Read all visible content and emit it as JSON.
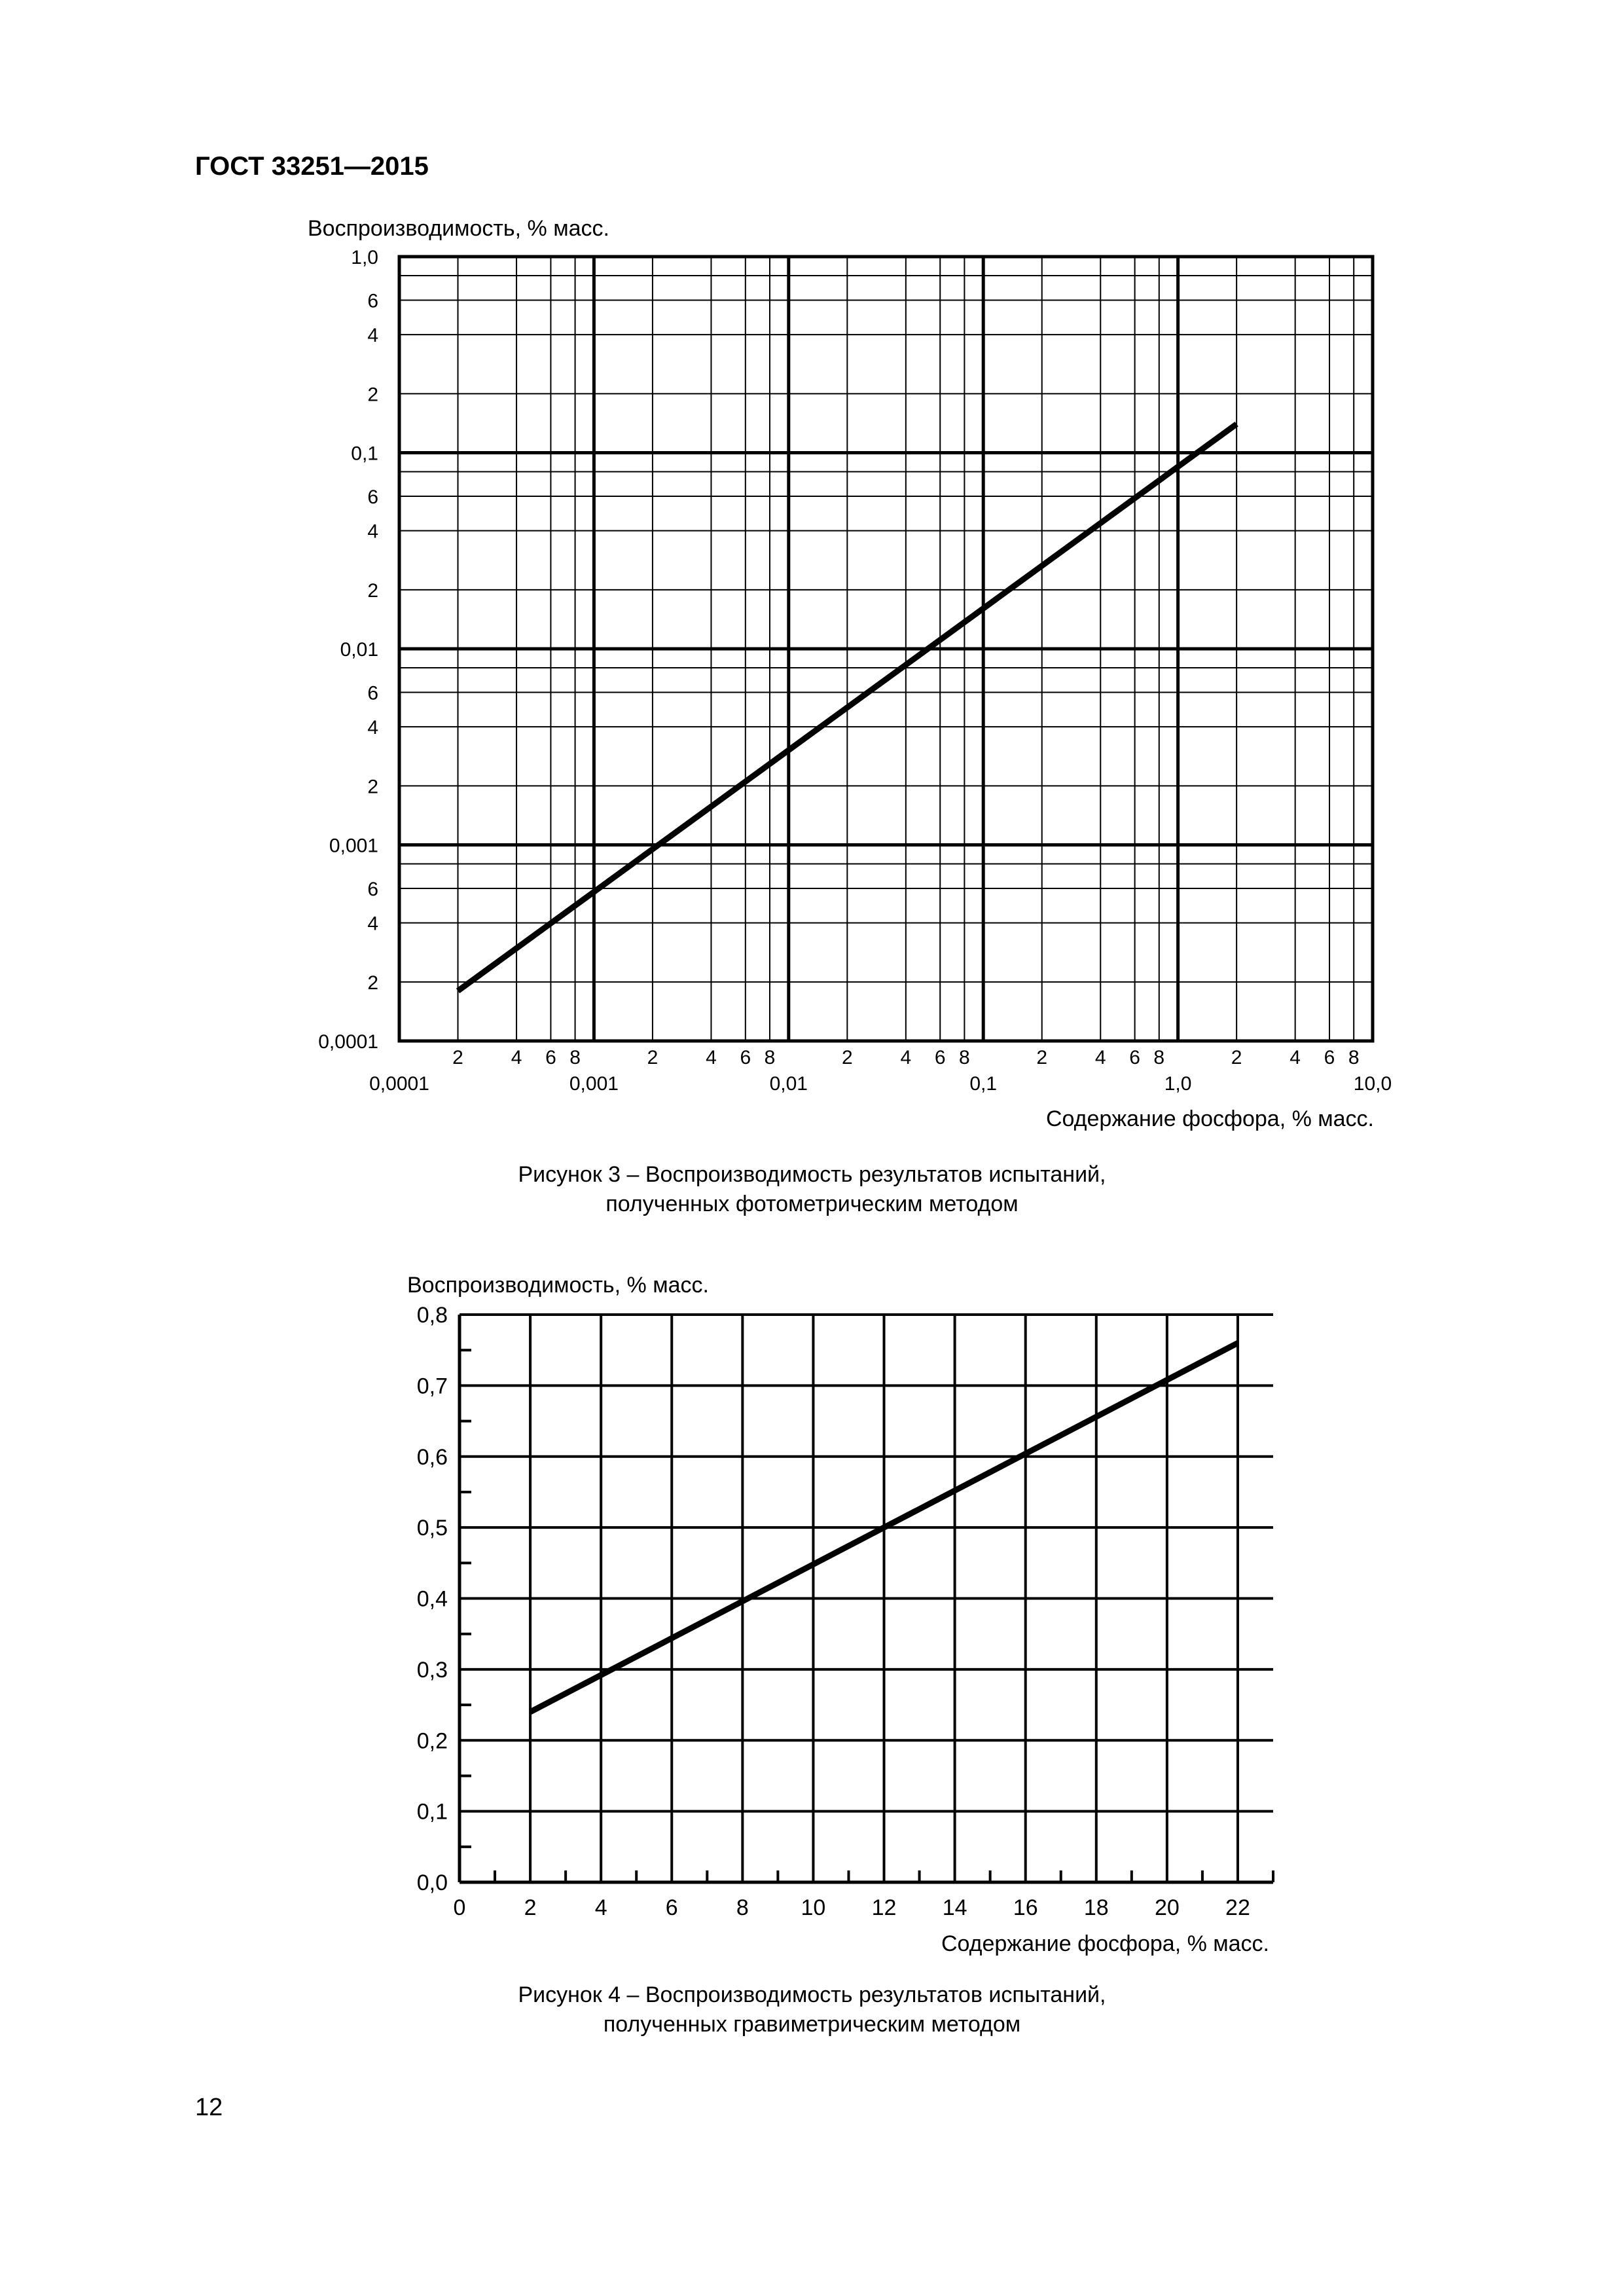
{
  "header": {
    "code": "ГОСТ 33251—2015"
  },
  "page_number": "12",
  "figures": [
    {
      "caption_line1": "Рисунок 3 – Воспроизводимость результатов испытаний,",
      "caption_line2": "полученных фотометрическим методом"
    },
    {
      "caption_line1": "Рисунок 4 – Воспроизводимость результатов испытаний,",
      "caption_line2": "полученных гравиметрическим методом"
    }
  ],
  "chart_data": [
    {
      "type": "line",
      "xscale": "log",
      "yscale": "log",
      "ylabel": "Воспроизводимость, % масс.",
      "xlabel": "Содержание фосфора, % масс.",
      "xlim": [
        0.0001,
        10.0
      ],
      "ylim": [
        0.0001,
        1.0
      ],
      "grid": true,
      "x_tick_labels": [
        {
          "v": 0.0001,
          "t": "0,0001"
        },
        {
          "v": 0.001,
          "t": "0,001"
        },
        {
          "v": 0.01,
          "t": "0,01"
        },
        {
          "v": 0.1,
          "t": "0,1"
        },
        {
          "v": 1.0,
          "t": "1,0"
        },
        {
          "v": 10.0,
          "t": "10,0"
        }
      ],
      "x_minor_labels": [
        "2",
        "4",
        "6",
        "8"
      ],
      "y_tick_labels": [
        {
          "v": 1.0,
          "t": "1,0"
        },
        {
          "v": 0.1,
          "t": "0,1"
        },
        {
          "v": 0.01,
          "t": "0,01"
        },
        {
          "v": 0.001,
          "t": "0,001"
        },
        {
          "v": 0.0001,
          "t": "0,0001"
        }
      ],
      "y_minor_labels": [
        "2",
        "4",
        "6"
      ],
      "series": [
        {
          "x": [
            0.0002,
            2.0
          ],
          "y": [
            0.00018,
            0.14
          ]
        }
      ]
    },
    {
      "type": "line",
      "ylabel": "Воспроизводимость, % масс.",
      "xlabel": "Содержание фосфора, % масс.",
      "xlim": [
        0,
        23
      ],
      "ylim": [
        0,
        0.8
      ],
      "grid": true,
      "x_ticks": [
        {
          "v": 0,
          "t": "0"
        },
        {
          "v": 2,
          "t": "2"
        },
        {
          "v": 4,
          "t": "4"
        },
        {
          "v": 6,
          "t": "6"
        },
        {
          "v": 8,
          "t": "8"
        },
        {
          "v": 10,
          "t": "10"
        },
        {
          "v": 12,
          "t": "12"
        },
        {
          "v": 14,
          "t": "14"
        },
        {
          "v": 16,
          "t": "16"
        },
        {
          "v": 18,
          "t": "18"
        },
        {
          "v": 20,
          "t": "20"
        },
        {
          "v": 22,
          "t": "22"
        }
      ],
      "y_ticks": [
        {
          "v": 0.0,
          "t": "0,0"
        },
        {
          "v": 0.1,
          "t": "0,1"
        },
        {
          "v": 0.2,
          "t": "0,2"
        },
        {
          "v": 0.3,
          "t": "0,3"
        },
        {
          "v": 0.4,
          "t": "0,4"
        },
        {
          "v": 0.5,
          "t": "0,5"
        },
        {
          "v": 0.6,
          "t": "0,6"
        },
        {
          "v": 0.7,
          "t": "0,7"
        },
        {
          "v": 0.8,
          "t": "0,8"
        }
      ],
      "series": [
        {
          "x": [
            2,
            22
          ],
          "y": [
            0.24,
            0.76
          ]
        }
      ]
    }
  ]
}
